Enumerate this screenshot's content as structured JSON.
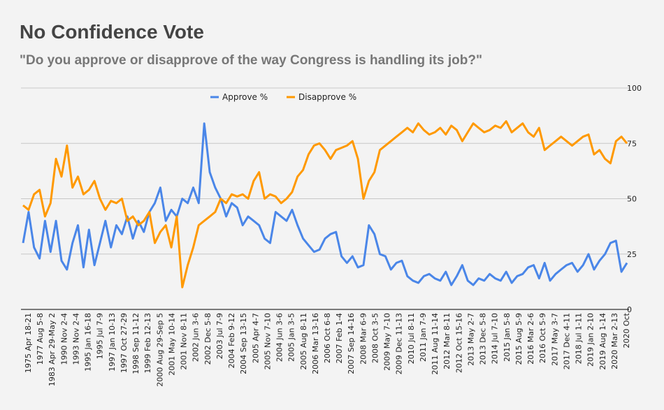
{
  "header": {
    "title": "No Confidence Vote",
    "subtitle": "\"Do you approve or disapprove of the way Congress is handling its job?\""
  },
  "colors": {
    "approve": "#4a86e8",
    "disapprove": "#ff9900",
    "grid": "#c8c8c8",
    "axis": "#333333"
  },
  "chart_data": {
    "type": "line",
    "title": "No Confidence Vote",
    "subtitle": "\"Do you approve or disapprove of the way Congress is handling its job?\"",
    "xlabel": "",
    "ylabel": "",
    "ylim": [
      0,
      100
    ],
    "yticks": [
      0,
      25,
      50,
      75,
      100
    ],
    "legend_position": "top",
    "xtick_labels": [
      "1975 Apr 18-21",
      "1977 Aug 5-8",
      "1983 Apr 29-May 2",
      "1990 Nov 2-4",
      "1993 Nov 2-4",
      "1995 Jan 16-18",
      "1995 Jul 7-9",
      "1997 Jan 10-13",
      "1997 Oct 27-29",
      "1998 Sep 11-12",
      "1999 Feb 12-13",
      "2000 Aug 29-Sep 5",
      "2001 May 10-14",
      "2001 Nov 8-11",
      "2002 Jun 3-6",
      "2002 Dec 5-8",
      "2003 Jul 7-9",
      "2004 Feb 9-12",
      "2004 Sep 13-15",
      "2005 Apr 4-7",
      "2005 Nov 7-10",
      "2004 Jun 3-6",
      "2005 Jan 3-5",
      "2005 Aug 8-11",
      "2006 Mar 13-16",
      "2006 Oct 6-8",
      "2007 Feb 1-4",
      "2007 Sep 14-16",
      "2008 Mar 6-9",
      "2008 Oct 3-5",
      "2009 May 7-10",
      "2009 Dec 11-13",
      "2010 Jul 8-11",
      "2011 Jan 7-9",
      "2011 Aug 11-14",
      "2012 Mar 8-11",
      "2012 Oct 15-16",
      "2013 May 2-7",
      "2013 Dec 5-8",
      "2014 Jul 7-10",
      "2015 Jan 5-8",
      "2015 Aug 5-9",
      "2016 Mar 2-6",
      "2016 Oct 5-9",
      "2017 May 3-7",
      "2017 Dec 4-11",
      "2018 Jul 1-11",
      "2019 Jan 2-10",
      "2019 Aug 1-14",
      "2020 Mar 2-13",
      "2020 Oct"
    ],
    "series": [
      {
        "name": "Approve %",
        "values": [
          30,
          44,
          28,
          23,
          40,
          26,
          40,
          22,
          18,
          30,
          38,
          19,
          36,
          20,
          30,
          40,
          28,
          38,
          34,
          42,
          32,
          40,
          35,
          44,
          48,
          55,
          40,
          45,
          42,
          50,
          48,
          55,
          48,
          84,
          62,
          55,
          50,
          42,
          48,
          46,
          38,
          42,
          40,
          38,
          32,
          30,
          44,
          42,
          40,
          45,
          38,
          32,
          29,
          26,
          27,
          32,
          34,
          35,
          24,
          21,
          24,
          19,
          20,
          38,
          34,
          25,
          24,
          18,
          21,
          22,
          15,
          13,
          12,
          15,
          16,
          14,
          13,
          17,
          11,
          15,
          20,
          13,
          11,
          14,
          13,
          16,
          14,
          13,
          17,
          12,
          15,
          16,
          19,
          20,
          14,
          21,
          13,
          16,
          18,
          20,
          21,
          17,
          20,
          25,
          18,
          22,
          25,
          30,
          31,
          17,
          21
        ]
      },
      {
        "name": "Disapprove %",
        "values": [
          47,
          45,
          52,
          54,
          42,
          48,
          68,
          60,
          74,
          55,
          60,
          52,
          54,
          58,
          50,
          45,
          49,
          48,
          50,
          40,
          42,
          38,
          40,
          44,
          30,
          35,
          38,
          28,
          42,
          10,
          20,
          28,
          38,
          40,
          42,
          44,
          50,
          48,
          52,
          51,
          52,
          50,
          58,
          62,
          50,
          52,
          51,
          48,
          50,
          53,
          60,
          63,
          70,
          74,
          75,
          72,
          68,
          72,
          73,
          74,
          76,
          68,
          50,
          58,
          62,
          72,
          74,
          76,
          78,
          80,
          82,
          80,
          84,
          81,
          79,
          80,
          82,
          79,
          83,
          81,
          76,
          80,
          84,
          82,
          80,
          81,
          83,
          82,
          85,
          80,
          82,
          84,
          80,
          78,
          82,
          72,
          74,
          76,
          78,
          76,
          74,
          76,
          78,
          79,
          70,
          72,
          68,
          66,
          76,
          78,
          75
        ]
      }
    ]
  }
}
